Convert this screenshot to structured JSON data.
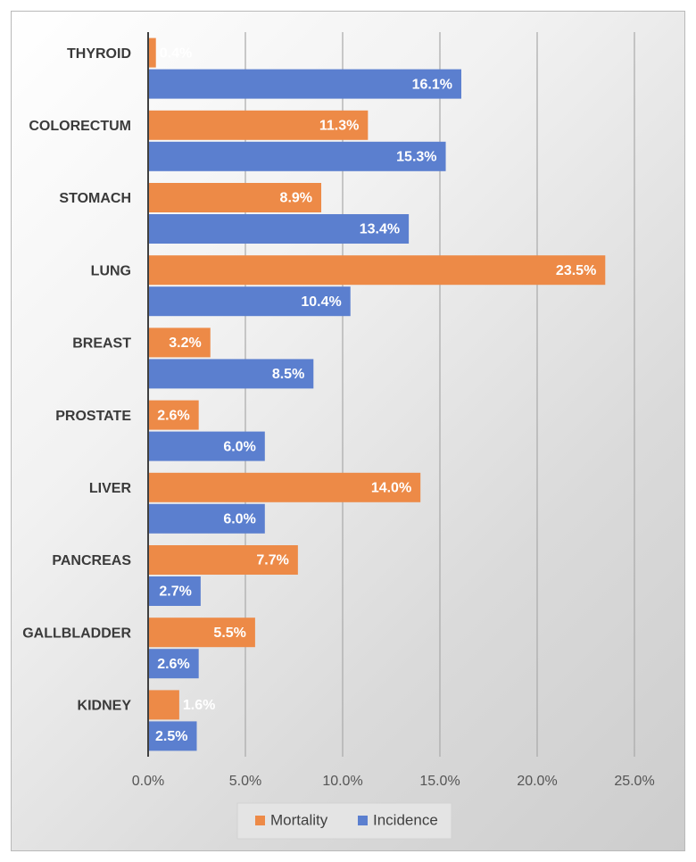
{
  "chart_data": {
    "type": "bar",
    "orientation": "horizontal",
    "categories": [
      "THYROID",
      "COLORECTUM",
      "STOMACH",
      "LUNG",
      "BREAST",
      "PROSTATE",
      "LIVER",
      "PANCREAS",
      "GALLBLADDER",
      "KIDNEY"
    ],
    "series": [
      {
        "name": "Mortality",
        "color": "#ED8A47",
        "values": [
          0.4,
          11.3,
          8.9,
          23.5,
          3.2,
          2.6,
          14.0,
          7.7,
          5.5,
          1.6
        ]
      },
      {
        "name": "Incidence",
        "color": "#5B7FCF",
        "values": [
          16.1,
          15.3,
          13.4,
          10.4,
          8.5,
          6.0,
          6.0,
          2.7,
          2.6,
          2.5
        ]
      }
    ],
    "xlim": [
      0,
      25
    ],
    "x_ticks": [
      0,
      5,
      10,
      15,
      20,
      25
    ],
    "x_tick_labels": [
      "0.0%",
      "5.0%",
      "10.0%",
      "15.0%",
      "20.0%",
      "25.0%"
    ],
    "value_suffix": "%",
    "value_decimals": 1,
    "title": "",
    "xlabel": "",
    "ylabel": "",
    "grid": "vertical",
    "legend": "bottom-center"
  }
}
